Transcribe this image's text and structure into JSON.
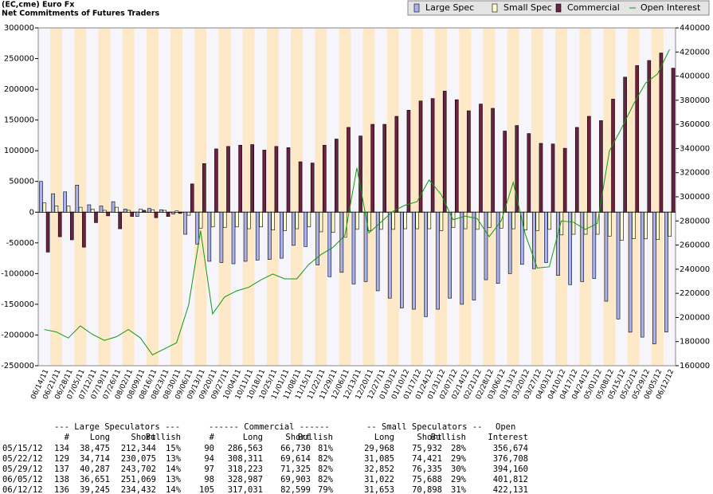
{
  "chart_data": {
    "type": "bar",
    "title": "(EC,cme) Euro Fx",
    "subtitle": "Net Commitments of Futures Traders",
    "categories": [
      "06/14/11",
      "06/21/11",
      "06/28/11",
      "07/05/11",
      "07/12/11",
      "07/19/11",
      "07/26/11",
      "08/02/11",
      "08/09/11",
      "08/16/11",
      "08/23/11",
      "08/30/11",
      "09/06/11",
      "09/13/11",
      "09/20/11",
      "09/27/11",
      "10/04/11",
      "10/11/11",
      "10/18/11",
      "10/25/11",
      "11/01/11",
      "11/08/11",
      "11/15/11",
      "11/22/11",
      "11/29/11",
      "12/06/11",
      "12/13/11",
      "12/20/11",
      "12/27/11",
      "01/03/12",
      "01/10/12",
      "01/17/12",
      "01/24/12",
      "01/31/12",
      "02/07/12",
      "02/14/12",
      "02/21/12",
      "02/28/12",
      "03/06/12",
      "03/13/12",
      "03/20/12",
      "03/27/12",
      "04/03/12",
      "04/10/12",
      "04/17/12",
      "04/24/12",
      "05/01/12",
      "05/08/12",
      "05/15/12",
      "05/22/12",
      "05/29/12",
      "06/05/12",
      "06/12/12"
    ],
    "series": [
      {
        "name": "Large Spec",
        "color": "#aab2ee",
        "values": [
          50000,
          30000,
          33000,
          44000,
          12000,
          10000,
          17000,
          5000,
          -7000,
          6000,
          4000,
          -3000,
          -36000,
          -52000,
          -80000,
          -82000,
          -84000,
          -80000,
          -78000,
          -77000,
          -75000,
          -54000,
          -56000,
          -86000,
          -105000,
          -98000,
          -117000,
          -113000,
          -128000,
          -140000,
          -156000,
          -158000,
          -170000,
          -158000,
          -140000,
          -150000,
          -143000,
          -110000,
          -116000,
          -100000,
          -85000,
          -92000,
          -82000,
          -103000,
          -118000,
          -113000,
          -108000,
          -145000,
          -173869,
          -195361,
          -203415,
          -214418,
          -195187
        ]
      },
      {
        "name": "Small Spec",
        "color": "#ffffcc",
        "values": [
          15000,
          10000,
          10000,
          8000,
          5000,
          3000,
          8000,
          3000,
          5000,
          4000,
          3000,
          2000,
          -5000,
          -26000,
          -24000,
          -25000,
          -24000,
          -27000,
          -24000,
          -29000,
          -30000,
          -27000,
          -24000,
          -32000,
          -33000,
          -41000,
          -28000,
          -30000,
          -28000,
          -28000,
          -27000,
          -27000,
          -27000,
          -30000,
          -25000,
          -27000,
          -28000,
          -25000,
          -26000,
          -27000,
          -29000,
          -30000,
          -28000,
          -37000,
          -36000,
          -36000,
          -36000,
          -39000,
          -45964,
          -43336,
          -43483,
          -44666,
          -39245
        ]
      },
      {
        "name": "Commercial",
        "color": "#6b2142",
        "values": [
          -65000,
          -40000,
          -45000,
          -57000,
          -17000,
          -6000,
          -27000,
          -7000,
          3000,
          -9000,
          -7000,
          -2000,
          46000,
          79000,
          103000,
          107000,
          109000,
          110000,
          101000,
          107000,
          105000,
          82000,
          80000,
          109000,
          119000,
          138000,
          124000,
          143000,
          143000,
          156000,
          166000,
          181000,
          185000,
          197000,
          183000,
          165000,
          176000,
          169000,
          132000,
          141000,
          128000,
          112000,
          111000,
          104000,
          138000,
          156000,
          149000,
          184000,
          219833,
          238697,
          246898,
          259084,
          234432
        ]
      },
      {
        "name": "Open Interest",
        "color": "#119911",
        "type": "line",
        "axis": "y2",
        "values": [
          190000,
          188000,
          183000,
          193000,
          186000,
          181000,
          184000,
          190000,
          183000,
          169000,
          174000,
          179000,
          210000,
          272000,
          203000,
          217000,
          222000,
          225000,
          231000,
          236000,
          232000,
          232000,
          244000,
          252000,
          258000,
          268000,
          324000,
          270000,
          279000,
          288000,
          293000,
          296000,
          314000,
          302000,
          281000,
          284000,
          282000,
          267000,
          280000,
          312000,
          269000,
          241000,
          242000,
          280000,
          279000,
          273000,
          278000,
          338000,
          356674,
          376708,
          394160,
          401812,
          422131
        ]
      }
    ],
    "ylim": [
      -250000,
      300000
    ],
    "yticks": [
      -250000,
      -200000,
      -150000,
      -100000,
      -50000,
      0,
      50000,
      100000,
      150000,
      200000,
      250000,
      300000
    ],
    "y2lim": [
      160000,
      440000
    ],
    "y2ticks": [
      160000,
      180000,
      200000,
      220000,
      240000,
      260000,
      280000,
      300000,
      320000,
      340000,
      360000,
      380000,
      400000,
      420000,
      440000
    ],
    "legend": "top-right"
  },
  "table": {
    "group_headers": [
      "--- Large Speculators ---",
      "------ Commercial ------",
      "-- Small Speculators --",
      "Open"
    ],
    "headers": [
      "#",
      "Long",
      "Short",
      "Bullish",
      "#",
      "Long",
      "Short",
      "Bullish",
      "Long",
      "Short",
      "Bullish",
      "Interest"
    ],
    "rows": [
      [
        "05/15/12",
        "134",
        "38,475",
        "212,344",
        "15%",
        "90",
        "286,563",
        "66,730",
        "81%",
        "29,968",
        "75,932",
        "28%",
        "356,674"
      ],
      [
        "05/22/12",
        "129",
        "34,714",
        "230,075",
        "13%",
        "94",
        "308,311",
        "69,614",
        "82%",
        "31,085",
        "74,421",
        "29%",
        "376,708"
      ],
      [
        "05/29/12",
        "137",
        "40,287",
        "243,702",
        "14%",
        "97",
        "318,223",
        "71,325",
        "82%",
        "32,852",
        "76,335",
        "30%",
        "394,160"
      ],
      [
        "06/05/12",
        "138",
        "36,651",
        "251,069",
        "13%",
        "98",
        "328,987",
        "69,903",
        "82%",
        "31,022",
        "75,688",
        "29%",
        "401,812"
      ],
      [
        "06/12/12",
        "136",
        "39,245",
        "234,432",
        "14%",
        "105",
        "317,031",
        "82,599",
        "79%",
        "31,653",
        "70,898",
        "31%",
        "422,131"
      ]
    ]
  }
}
